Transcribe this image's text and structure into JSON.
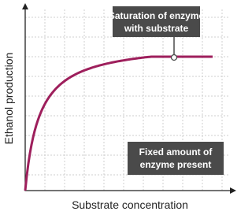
{
  "axes": {
    "x_label": "Substrate concentration",
    "y_label": "Ethanol production"
  },
  "annotations": [
    {
      "lines": [
        "Saturation of enzyme",
        "with substrate"
      ]
    },
    {
      "lines": [
        "Fixed amount of",
        "enzyme present"
      ]
    }
  ]
}
